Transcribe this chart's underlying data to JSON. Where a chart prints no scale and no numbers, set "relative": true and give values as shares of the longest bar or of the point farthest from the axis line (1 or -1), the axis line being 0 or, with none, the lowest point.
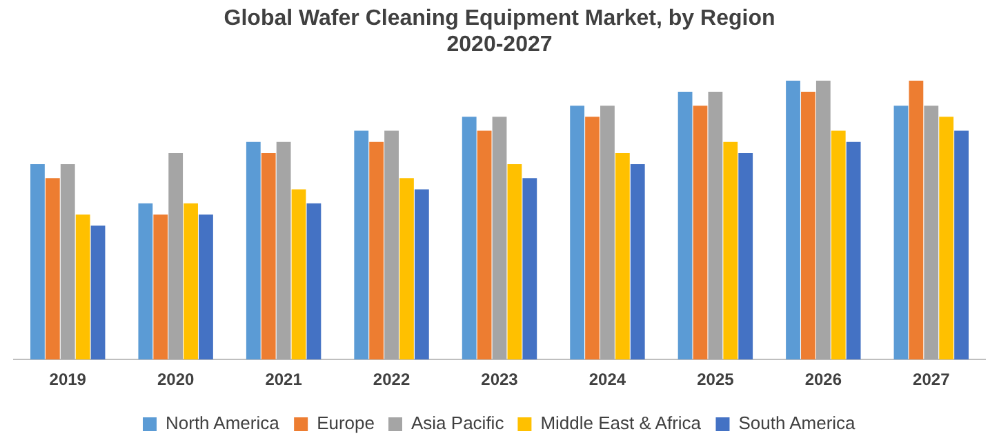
{
  "chart_data": {
    "type": "bar",
    "title": "Global Wafer Cleaning Equipment Market, by Region",
    "subtitle": "2020-2027",
    "relative": true,
    "legend": "bottom",
    "grid": false,
    "categories": [
      "2019",
      "2020",
      "2021",
      "2022",
      "2023",
      "2024",
      "2025",
      "2026",
      "2027"
    ],
    "series": [
      {
        "name": "North America",
        "color": "#5b9bd5",
        "values": [
          0.7,
          0.56,
          0.78,
          0.82,
          0.87,
          0.91,
          0.96,
          1,
          0.91
        ]
      },
      {
        "name": "Europe",
        "color": "#ed7d31",
        "values": [
          0.65,
          0.52,
          0.74,
          0.78,
          0.82,
          0.87,
          0.91,
          0.96,
          1
        ]
      },
      {
        "name": "Asia Pacific",
        "color": "#a5a5a5",
        "values": [
          0.7,
          0.74,
          0.78,
          0.82,
          0.87,
          0.91,
          0.96,
          1,
          0.91
        ]
      },
      {
        "name": "Middle East & Africa",
        "color": "#ffc000",
        "values": [
          0.52,
          0.56,
          0.61,
          0.65,
          0.7,
          0.74,
          0.78,
          0.82,
          0.87
        ]
      },
      {
        "name": "South America",
        "color": "#4472c4",
        "values": [
          0.48,
          0.52,
          0.56,
          0.61,
          0.65,
          0.7,
          0.74,
          0.78,
          0.82
        ]
      }
    ]
  }
}
